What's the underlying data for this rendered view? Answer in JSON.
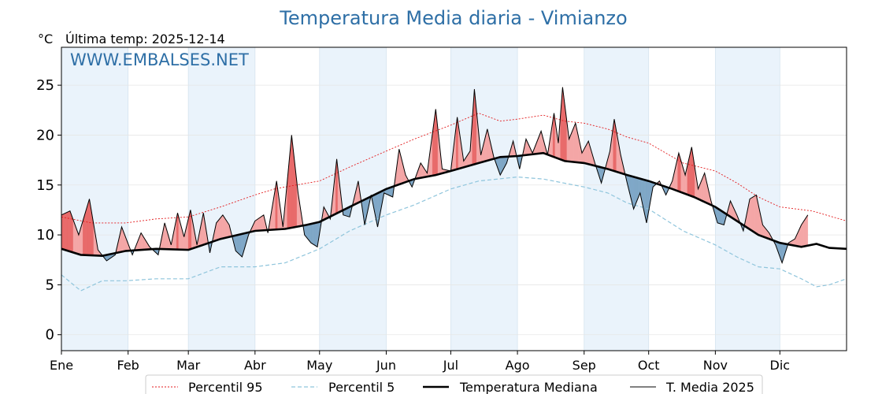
{
  "header": {
    "title": "Temperatura Media diaria - Vimianzo",
    "unit_label": "°C",
    "last_temp_label": "Última temp: 2025-12-14",
    "watermark": "WWW.EMBALSES.NET"
  },
  "chart_data": {
    "type": "line",
    "title": "Temperatura Media diaria - Vimianzo",
    "ylabel": "°C",
    "ylim": [
      -1.6,
      28.8
    ],
    "xlim": [
      1,
      366
    ],
    "yticks": [
      0,
      5,
      10,
      15,
      20,
      25
    ],
    "month_ticks": [
      {
        "label": "Ene",
        "day": 1
      },
      {
        "label": "Feb",
        "day": 32
      },
      {
        "label": "Mar",
        "day": 60
      },
      {
        "label": "Abr",
        "day": 91
      },
      {
        "label": "May",
        "day": 121
      },
      {
        "label": "Jun",
        "day": 152
      },
      {
        "label": "Jul",
        "day": 182
      },
      {
        "label": "Ago",
        "day": 213
      },
      {
        "label": "Sep",
        "day": 244
      },
      {
        "label": "Oct",
        "day": 274
      },
      {
        "label": "Nov",
        "day": 305
      },
      {
        "label": "Dic",
        "day": 335
      }
    ],
    "shaded_months": [
      "Ene",
      "Mar",
      "May",
      "Jul",
      "Sep",
      "Nov"
    ],
    "grid": true,
    "legend_position": "bottom",
    "last_day_2025": 348,
    "colors": {
      "p95": "#e31a1c",
      "p5": "#8fc5dc",
      "median": "#000000",
      "current": "#000000",
      "above": "#f4a6a6",
      "below": "#7fa7c7",
      "band": "#eaf3fb"
    },
    "series": [
      {
        "name": "Percentil 95",
        "points": [
          [
            1,
            11.8
          ],
          [
            15,
            11.2
          ],
          [
            31,
            11.2
          ],
          [
            45,
            11.6
          ],
          [
            60,
            11.8
          ],
          [
            75,
            12.8
          ],
          [
            91,
            14.0
          ],
          [
            100,
            14.6
          ],
          [
            110,
            15.0
          ],
          [
            121,
            15.4
          ],
          [
            135,
            16.8
          ],
          [
            152,
            18.4
          ],
          [
            165,
            19.6
          ],
          [
            182,
            21.0
          ],
          [
            195,
            22.2
          ],
          [
            205,
            21.4
          ],
          [
            213,
            21.6
          ],
          [
            225,
            22.0
          ],
          [
            235,
            21.4
          ],
          [
            244,
            21.2
          ],
          [
            255,
            20.6
          ],
          [
            264,
            19.8
          ],
          [
            274,
            19.2
          ],
          [
            290,
            17.2
          ],
          [
            305,
            16.4
          ],
          [
            315,
            15.2
          ],
          [
            325,
            13.8
          ],
          [
            335,
            12.8
          ],
          [
            350,
            12.4
          ],
          [
            366,
            11.4
          ]
        ]
      },
      {
        "name": "Percentil 5",
        "points": [
          [
            1,
            6.0
          ],
          [
            10,
            4.4
          ],
          [
            20,
            5.4
          ],
          [
            31,
            5.4
          ],
          [
            45,
            5.6
          ],
          [
            60,
            5.6
          ],
          [
            75,
            6.8
          ],
          [
            91,
            6.8
          ],
          [
            105,
            7.2
          ],
          [
            121,
            8.6
          ],
          [
            135,
            10.4
          ],
          [
            152,
            12.0
          ],
          [
            165,
            13.0
          ],
          [
            182,
            14.6
          ],
          [
            195,
            15.4
          ],
          [
            213,
            15.8
          ],
          [
            225,
            15.6
          ],
          [
            244,
            14.8
          ],
          [
            255,
            14.2
          ],
          [
            264,
            13.2
          ],
          [
            274,
            12.6
          ],
          [
            290,
            10.4
          ],
          [
            305,
            9.0
          ],
          [
            315,
            7.8
          ],
          [
            325,
            6.8
          ],
          [
            335,
            6.6
          ],
          [
            345,
            5.6
          ],
          [
            352,
            4.8
          ],
          [
            358,
            5.0
          ],
          [
            366,
            5.6
          ]
        ]
      },
      {
        "name": "Temperatura Mediana",
        "points": [
          [
            1,
            8.6
          ],
          [
            10,
            8.0
          ],
          [
            20,
            7.9
          ],
          [
            31,
            8.4
          ],
          [
            45,
            8.6
          ],
          [
            60,
            8.5
          ],
          [
            75,
            9.6
          ],
          [
            91,
            10.4
          ],
          [
            105,
            10.6
          ],
          [
            115,
            11.0
          ],
          [
            121,
            11.3
          ],
          [
            135,
            12.8
          ],
          [
            152,
            14.6
          ],
          [
            165,
            15.6
          ],
          [
            175,
            16.0
          ],
          [
            182,
            16.4
          ],
          [
            195,
            17.2
          ],
          [
            205,
            17.8
          ],
          [
            213,
            17.9
          ],
          [
            225,
            18.2
          ],
          [
            235,
            17.4
          ],
          [
            244,
            17.2
          ],
          [
            255,
            16.6
          ],
          [
            264,
            16.0
          ],
          [
            274,
            15.4
          ],
          [
            285,
            14.6
          ],
          [
            295,
            13.8
          ],
          [
            305,
            12.8
          ],
          [
            315,
            11.4
          ],
          [
            325,
            10.0
          ],
          [
            335,
            9.2
          ],
          [
            345,
            8.8
          ],
          [
            352,
            9.1
          ],
          [
            358,
            8.7
          ],
          [
            366,
            8.6
          ]
        ]
      },
      {
        "name": "T. Media 2025",
        "points": [
          [
            1,
            12.0
          ],
          [
            5,
            12.4
          ],
          [
            9,
            10.0
          ],
          [
            14,
            13.6
          ],
          [
            18,
            8.5
          ],
          [
            22,
            7.4
          ],
          [
            26,
            8.0
          ],
          [
            29,
            10.8
          ],
          [
            34,
            8.0
          ],
          [
            38,
            10.2
          ],
          [
            42,
            8.8
          ],
          [
            46,
            8.0
          ],
          [
            49,
            11.2
          ],
          [
            52,
            9.0
          ],
          [
            55,
            12.2
          ],
          [
            58,
            9.8
          ],
          [
            61,
            12.5
          ],
          [
            64,
            9.0
          ],
          [
            67,
            12.2
          ],
          [
            70,
            8.2
          ],
          [
            73,
            11.2
          ],
          [
            76,
            12.0
          ],
          [
            79,
            11.0
          ],
          [
            82,
            8.4
          ],
          [
            85,
            7.8
          ],
          [
            88,
            10.0
          ],
          [
            91,
            11.4
          ],
          [
            95,
            12.0
          ],
          [
            97,
            10.2
          ],
          [
            101,
            15.4
          ],
          [
            104,
            10.8
          ],
          [
            108,
            20.0
          ],
          [
            111,
            14.2
          ],
          [
            114,
            10.0
          ],
          [
            117,
            9.2
          ],
          [
            120,
            8.8
          ],
          [
            123,
            12.8
          ],
          [
            126,
            11.6
          ],
          [
            129,
            17.6
          ],
          [
            132,
            12.0
          ],
          [
            135,
            11.8
          ],
          [
            139,
            15.4
          ],
          [
            142,
            11.0
          ],
          [
            145,
            14.0
          ],
          [
            148,
            10.8
          ],
          [
            151,
            14.2
          ],
          [
            155,
            13.8
          ],
          [
            158,
            18.6
          ],
          [
            161,
            16.0
          ],
          [
            164,
            14.8
          ],
          [
            168,
            17.2
          ],
          [
            171,
            16.2
          ],
          [
            175,
            22.6
          ],
          [
            178,
            16.6
          ],
          [
            182,
            16.4
          ],
          [
            185,
            21.8
          ],
          [
            188,
            17.4
          ],
          [
            191,
            18.4
          ],
          [
            193,
            24.6
          ],
          [
            196,
            18.0
          ],
          [
            199,
            20.6
          ],
          [
            202,
            17.8
          ],
          [
            205,
            16.0
          ],
          [
            208,
            17.2
          ],
          [
            211,
            19.4
          ],
          [
            214,
            16.6
          ],
          [
            217,
            19.6
          ],
          [
            220,
            18.2
          ],
          [
            224,
            20.4
          ],
          [
            227,
            18.0
          ],
          [
            230,
            22.2
          ],
          [
            232,
            19.2
          ],
          [
            234,
            24.8
          ],
          [
            237,
            19.6
          ],
          [
            240,
            21.2
          ],
          [
            243,
            18.2
          ],
          [
            246,
            19.4
          ],
          [
            249,
            17.2
          ],
          [
            252,
            15.2
          ],
          [
            256,
            18.4
          ],
          [
            258,
            21.6
          ],
          [
            261,
            18.0
          ],
          [
            264,
            15.2
          ],
          [
            267,
            12.6
          ],
          [
            270,
            14.2
          ],
          [
            273,
            11.2
          ],
          [
            276,
            14.8
          ],
          [
            279,
            15.4
          ],
          [
            282,
            14.0
          ],
          [
            285,
            15.4
          ],
          [
            288,
            18.2
          ],
          [
            291,
            16.0
          ],
          [
            294,
            18.8
          ],
          [
            297,
            14.6
          ],
          [
            300,
            16.2
          ],
          [
            303,
            13.4
          ],
          [
            306,
            11.2
          ],
          [
            309,
            11.0
          ],
          [
            312,
            13.4
          ],
          [
            315,
            12.0
          ],
          [
            318,
            10.4
          ],
          [
            321,
            13.6
          ],
          [
            324,
            14.0
          ],
          [
            327,
            11.0
          ],
          [
            330,
            10.2
          ],
          [
            333,
            9.0
          ],
          [
            336,
            7.2
          ],
          [
            339,
            9.2
          ],
          [
            342,
            9.6
          ],
          [
            345,
            11.0
          ],
          [
            348,
            12.0
          ]
        ]
      }
    ]
  },
  "legend": {
    "items": [
      {
        "label": "Percentil 95"
      },
      {
        "label": "Percentil 5"
      },
      {
        "label": "Temperatura Mediana"
      },
      {
        "label": "T. Media 2025"
      }
    ]
  }
}
